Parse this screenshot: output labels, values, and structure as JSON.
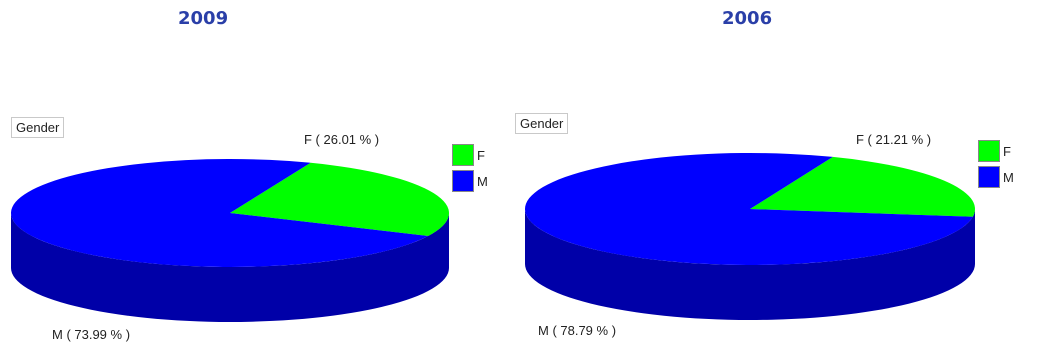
{
  "chart_data": [
    {
      "type": "pie",
      "title": "2009",
      "legend_title": "Gender",
      "categories": [
        "F",
        "M"
      ],
      "values": [
        26.01,
        73.99
      ],
      "labels": [
        "F ( 26.01 % )",
        "M ( 73.99 % )"
      ],
      "colors": [
        "#00ff00",
        "#0000ff"
      ],
      "side_color": "#0000a8",
      "legend": "right",
      "style": "3d"
    },
    {
      "type": "pie",
      "title": "2006",
      "legend_title": "Gender",
      "categories": [
        "F",
        "M"
      ],
      "values": [
        21.21,
        78.79
      ],
      "labels": [
        "F ( 21.21 % )",
        "M ( 78.79 % )"
      ],
      "colors": [
        "#00ff00",
        "#0000ff"
      ],
      "side_color": "#0000a8",
      "legend": "right",
      "style": "3d"
    }
  ]
}
